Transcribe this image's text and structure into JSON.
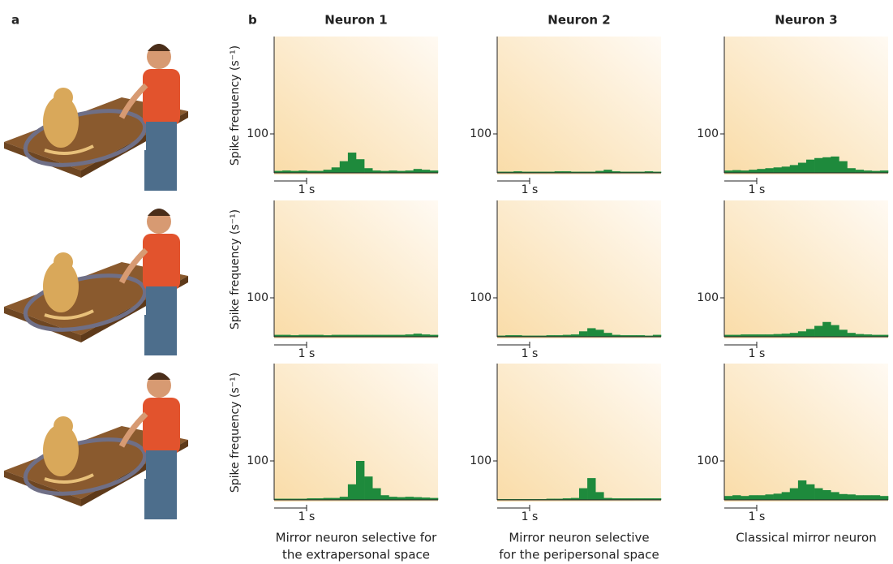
{
  "figure": {
    "panel_a": "a",
    "panel_b": "b",
    "y_label": "Spike frequency (s⁻¹)",
    "ylim": [
      0,
      350
    ],
    "yticks": [
      100
    ],
    "scale_bar": "1 s",
    "histogram_color": "#1e8a3c",
    "columns": [
      {
        "title": "Neuron 1",
        "caption": [
          "Mirror neuron selective for",
          "the extrapersonal space"
        ],
        "rows": [
          [
            5,
            6,
            5,
            6,
            5,
            5,
            8,
            14,
            30,
            52,
            35,
            12,
            6,
            5,
            6,
            5,
            6,
            10,
            8,
            6
          ],
          [
            5,
            5,
            4,
            5,
            5,
            5,
            4,
            5,
            5,
            5,
            5,
            5,
            5,
            5,
            5,
            5,
            6,
            8,
            6,
            5
          ],
          [
            3,
            3,
            3,
            3,
            4,
            4,
            5,
            5,
            8,
            40,
            100,
            60,
            30,
            12,
            8,
            7,
            8,
            7,
            6,
            5
          ]
        ]
      },
      {
        "title": "Neuron 2",
        "caption": [
          "Mirror neuron selective",
          "for the peripersonal space"
        ],
        "rows": [
          [
            3,
            3,
            4,
            3,
            3,
            3,
            3,
            4,
            4,
            3,
            3,
            3,
            5,
            8,
            4,
            3,
            3,
            3,
            4,
            3
          ],
          [
            3,
            4,
            4,
            3,
            3,
            3,
            4,
            4,
            5,
            6,
            14,
            22,
            18,
            10,
            5,
            4,
            4,
            4,
            3,
            5
          ],
          [
            2,
            2,
            2,
            2,
            2,
            2,
            3,
            3,
            4,
            5,
            30,
            56,
            20,
            5,
            4,
            4,
            4,
            4,
            4,
            4
          ]
        ]
      },
      {
        "title": "Neuron 3",
        "caption": [
          "Classical mirror neuron"
        ],
        "rows": [
          [
            6,
            7,
            6,
            8,
            10,
            12,
            14,
            16,
            20,
            26,
            34,
            38,
            40,
            42,
            30,
            12,
            8,
            6,
            5,
            6
          ],
          [
            5,
            5,
            6,
            6,
            6,
            6,
            7,
            8,
            10,
            14,
            20,
            28,
            38,
            30,
            18,
            10,
            7,
            6,
            5,
            5
          ],
          [
            10,
            12,
            10,
            12,
            12,
            14,
            16,
            20,
            30,
            50,
            40,
            30,
            25,
            20,
            15,
            14,
            12,
            12,
            12,
            10
          ]
        ]
      }
    ]
  }
}
